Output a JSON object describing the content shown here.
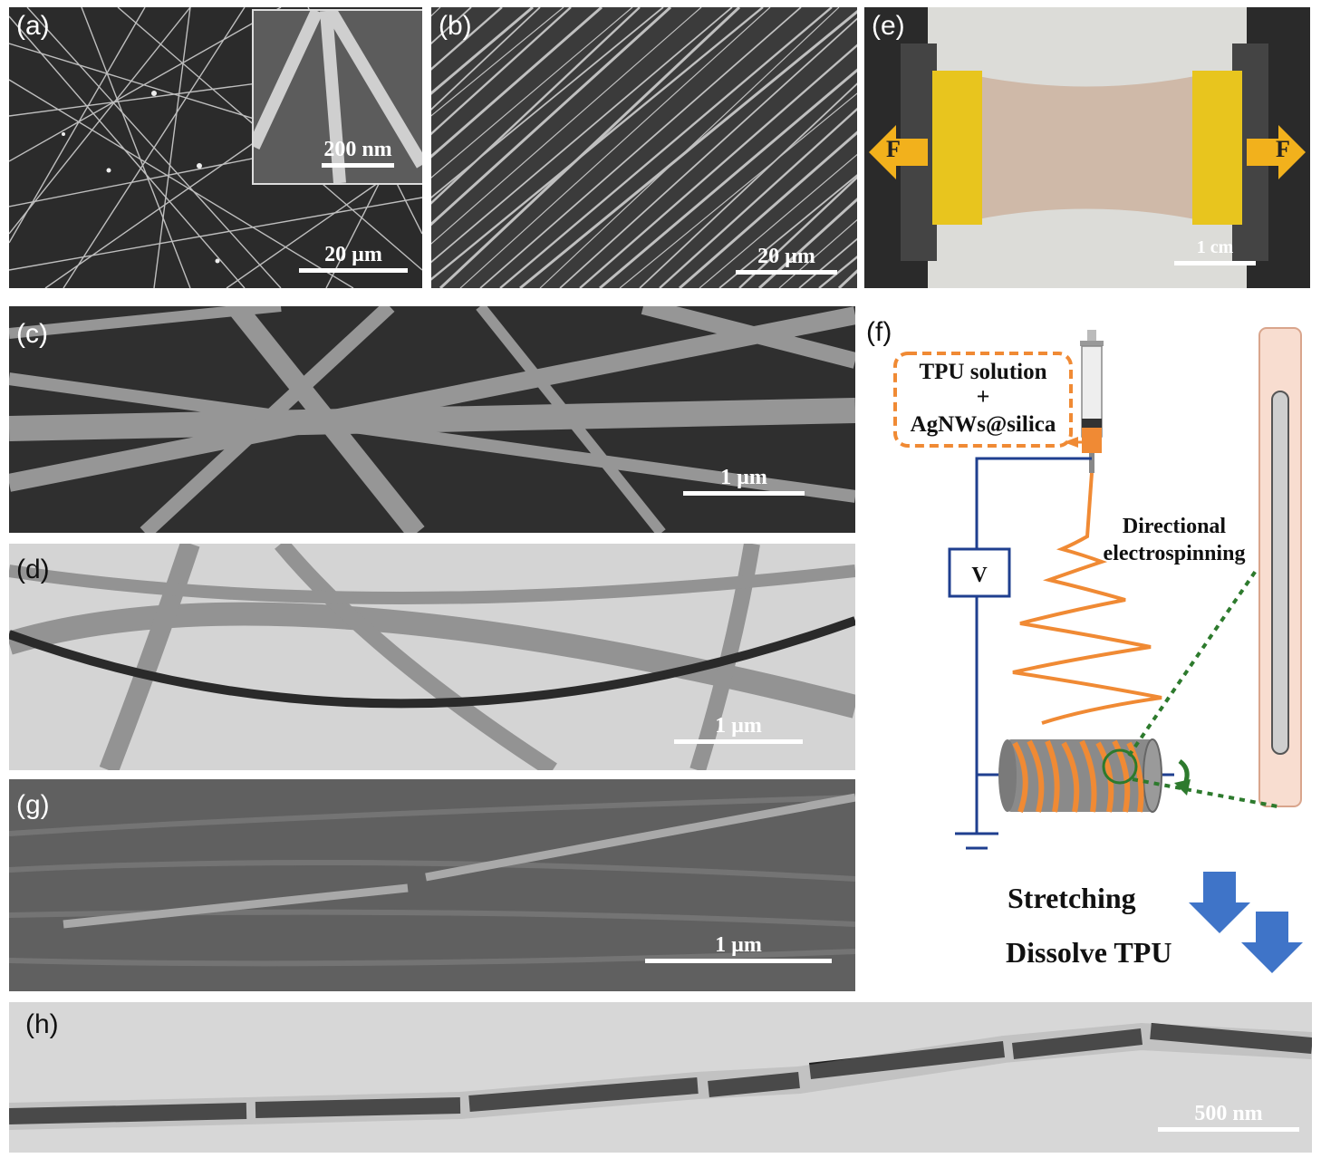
{
  "panels": {
    "a": {
      "label": "(a)",
      "scale": "20 µm",
      "inset_scale": "200 nm"
    },
    "b": {
      "label": "(b)",
      "scale": "20 µm"
    },
    "c": {
      "label": "(c)",
      "scale": "1 µm"
    },
    "d": {
      "label": "(d)",
      "scale": "1 µm"
    },
    "e": {
      "label": "(e)",
      "scale": "1 cm",
      "force_left": "F",
      "force_right": "F"
    },
    "f": {
      "label": "(f)",
      "solution_line1": "TPU  solution",
      "solution_plus": "+",
      "solution_line2": "AgNWs@silica",
      "voltage": "V",
      "process_line1": "Directional",
      "process_line2": "electrospinning",
      "step1": "Stretching",
      "step2": "Dissolve TPU"
    },
    "g": {
      "label": "(g)",
      "scale": "1 µm"
    },
    "h": {
      "label": "(h)",
      "scale": "500 nm"
    }
  },
  "colors": {
    "orange": "#f08a34",
    "blue": "#1f3f8f",
    "green": "#2d7a2d",
    "arrow_blue": "#3f74c8",
    "tape_yellow": "#e8c51e"
  }
}
